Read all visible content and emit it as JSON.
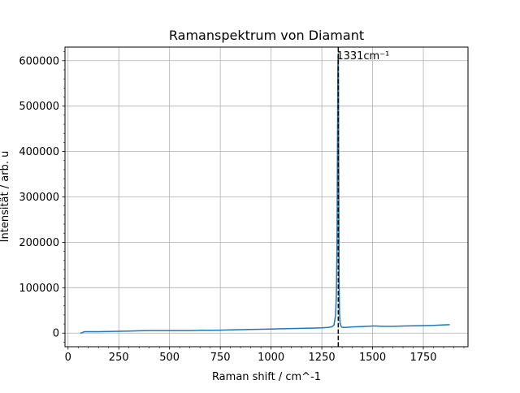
{
  "chart_data": {
    "type": "line",
    "title": "Ramanspektrum von Diamant",
    "xlabel": "Raman shift / cm^-1",
    "ylabel": "Intensität / arb. u",
    "xlim": [
      -15,
      1970
    ],
    "ylim": [
      -30000,
      630000
    ],
    "x_ticks": [
      0,
      250,
      500,
      750,
      1000,
      1250,
      1500,
      1750
    ],
    "x_tick_labels": [
      "0",
      "250",
      "500",
      "750",
      "1000",
      "1250",
      "1500",
      "1750"
    ],
    "x_minor_step": 50,
    "y_ticks": [
      0,
      100000,
      200000,
      300000,
      400000,
      500000,
      600000
    ],
    "y_tick_labels": [
      "0",
      "100000",
      "200000",
      "300000",
      "400000",
      "500000",
      "600000"
    ],
    "y_minor_step": 20000,
    "grid": true,
    "series": [
      {
        "color": "#1f77b4",
        "x": [
          60,
          70,
          80,
          90,
          100,
          150,
          200,
          250,
          300,
          350,
          400,
          450,
          500,
          550,
          600,
          640,
          660,
          680,
          700,
          750,
          800,
          850,
          900,
          950,
          1000,
          1050,
          1100,
          1150,
          1200,
          1250,
          1280,
          1300,
          1310,
          1318,
          1322,
          1325,
          1327,
          1329,
          1330,
          1331,
          1332,
          1333,
          1335,
          1337,
          1340,
          1345,
          1350,
          1360,
          1380,
          1400,
          1450,
          1500,
          1520,
          1550,
          1600,
          1650,
          1700,
          1750,
          1800,
          1850,
          1880
        ],
        "y": [
          0,
          1000,
          3000,
          3000,
          3000,
          3000,
          3500,
          4000,
          4500,
          5000,
          5500,
          5500,
          5500,
          5500,
          5500,
          6000,
          6500,
          6200,
          6200,
          6500,
          7000,
          7500,
          8000,
          8500,
          9000,
          9500,
          10000,
          10500,
          11000,
          11500,
          12500,
          14000,
          18000,
          40000,
          90000,
          200000,
          400000,
          580000,
          610000,
          612000,
          560000,
          380000,
          120000,
          45000,
          22000,
          15000,
          13000,
          12500,
          13000,
          13500,
          14500,
          15500,
          15500,
          15000,
          15000,
          15500,
          16000,
          16500,
          17000,
          18000,
          18500
        ]
      }
    ],
    "annotation": {
      "text": "1331cm⁻¹",
      "x": 1331,
      "y": 600000
    },
    "vline": {
      "x": 1331,
      "color": "#000000",
      "style": "dashed"
    }
  }
}
